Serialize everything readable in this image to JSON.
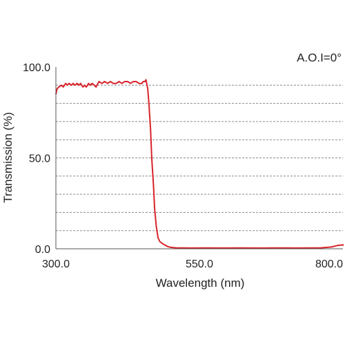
{
  "chart_data": {
    "type": "line",
    "annotation": "A.O.I=0°",
    "xlabel": "Wavelength (nm)",
    "ylabel": "Transmission (%)",
    "xlim": [
      300,
      800
    ],
    "ylim": [
      0,
      100
    ],
    "xticks": [
      {
        "value": 300,
        "label": "300.0"
      },
      {
        "value": 550,
        "label": "550.0"
      },
      {
        "value": 800,
        "label": "800.0"
      }
    ],
    "yticks": [
      {
        "value": 0,
        "label": "0.0"
      },
      {
        "value": 50,
        "label": "50.0"
      },
      {
        "value": 100,
        "label": "100.0"
      }
    ],
    "gridlines_y": [
      10,
      20,
      30,
      40,
      50,
      60,
      70,
      80,
      90
    ],
    "grid_style": "dashed horizontal",
    "line_color": "#d8232a",
    "series": [
      {
        "x": [
          300,
          302,
          305,
          310,
          313,
          317,
          320,
          323,
          327,
          330,
          333,
          337,
          340,
          343,
          347,
          350,
          353,
          357,
          360,
          363,
          367,
          370,
          375,
          380,
          385,
          390,
          395,
          400,
          405,
          410,
          415,
          420,
          425,
          430,
          435,
          440,
          445,
          450,
          452,
          455,
          457,
          460,
          462,
          465,
          467,
          470,
          472,
          475,
          478,
          481,
          485,
          490,
          495,
          500,
          510,
          520,
          540,
          560,
          590,
          620,
          650,
          680,
          700,
          720,
          740,
          760,
          780,
          790,
          800,
          805
        ],
        "y": [
          85,
          88,
          89,
          90,
          89,
          91,
          90,
          91,
          90,
          91,
          90,
          91,
          90,
          91,
          89,
          90,
          89,
          91,
          90,
          91,
          90,
          89,
          92,
          91,
          92,
          91,
          92,
          91,
          91,
          92,
          91,
          92,
          92,
          91,
          92,
          92,
          91,
          91,
          92,
          92,
          93,
          88,
          80,
          65,
          50,
          35,
          22,
          12,
          6,
          4,
          3,
          2,
          1.2,
          0.8,
          0.5,
          0.5,
          0.4,
          0.5,
          0.4,
          0.5,
          0.4,
          0.5,
          0.5,
          0.4,
          0.5,
          0.5,
          1.0,
          1.8,
          2.2,
          1.6
        ]
      }
    ]
  }
}
